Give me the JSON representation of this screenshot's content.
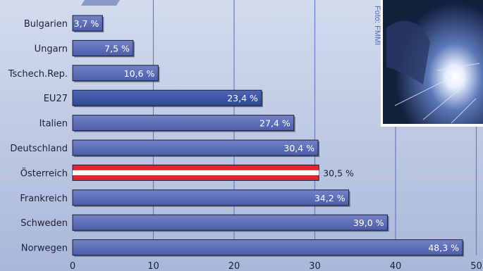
{
  "chart_data": {
    "type": "bar",
    "orientation": "horizontal",
    "categories": [
      "Bulgarien",
      "Ungarn",
      "Tschech.Rep.",
      "EU27",
      "Italien",
      "Deutschland",
      "Österreich",
      "Frankreich",
      "Schweden",
      "Norwegen"
    ],
    "values": [
      3.7,
      7.5,
      10.6,
      23.4,
      27.4,
      30.4,
      30.5,
      34.2,
      39.0,
      48.3
    ],
    "value_labels": [
      "3,7 %",
      "7,5 %",
      "10,6 %",
      "23,4 %",
      "27,4 %",
      "30,4 %",
      "30,5 %",
      "34,2 %",
      "39,0 %",
      "48,3 %"
    ],
    "highlight": "Österreich",
    "xlim": [
      0,
      50
    ],
    "xticks": [
      0,
      10,
      20,
      30,
      40,
      50
    ],
    "grid": true,
    "title": "",
    "xlabel": "",
    "ylabel": ""
  },
  "photo_credit": "Foto: FMMI",
  "colors": {
    "bar_fill": "#5a6bb4",
    "bar_fill_dark": "#3f57a4",
    "bar_border": "#1a1f3a",
    "highlight_red": "#e2262b",
    "highlight_white": "#ffffff",
    "grid": "#6b7dbf",
    "background": "#c4cfe6"
  }
}
